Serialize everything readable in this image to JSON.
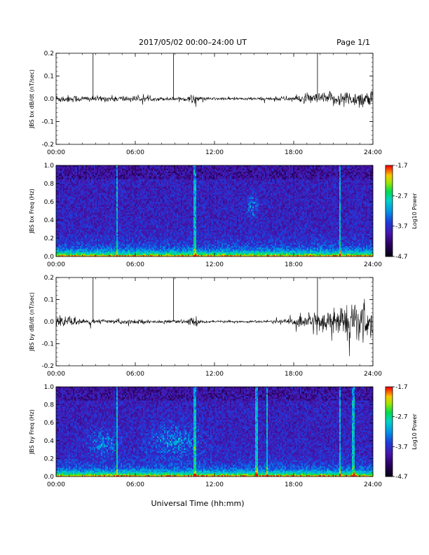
{
  "header": {
    "title": "2017/05/02  00:00–24:00 UT",
    "page": "Page 1/1"
  },
  "footer": {
    "xlabel": "Universal Time (hh:mm)"
  },
  "chart_data": [
    {
      "type": "line",
      "ylabel": "JBS bx dB/dt (nT/sec)",
      "xlim": [
        0,
        24
      ],
      "ylim": [
        -0.2,
        0.2
      ],
      "x_ticks": [
        "00:00",
        "06:00",
        "12:00",
        "18:00",
        "24:00"
      ],
      "y_ticks": [
        "-0.2",
        "-0.1",
        "0.0",
        "0.1",
        "0.2"
      ],
      "spike_hours": [
        2.8,
        8.9,
        19.8
      ],
      "amplitude_envelope": {
        "hours": [
          0,
          1,
          2,
          3,
          4,
          5,
          6,
          7,
          8,
          9,
          10,
          10.5,
          11,
          12,
          13,
          14,
          15,
          16,
          17,
          18,
          19,
          20,
          21,
          22,
          23,
          24
        ],
        "amp": [
          0.012,
          0.01,
          0.009,
          0.008,
          0.008,
          0.009,
          0.008,
          0.006,
          0.005,
          0.005,
          0.006,
          0.015,
          0.005,
          0.004,
          0.004,
          0.004,
          0.004,
          0.005,
          0.006,
          0.008,
          0.013,
          0.016,
          0.019,
          0.021,
          0.023,
          0.024
        ]
      }
    },
    {
      "type": "heatmap",
      "ylabel": "JBS bx Freq (Hz)",
      "xlim": [
        0,
        24
      ],
      "ylim": [
        0.0,
        1.0
      ],
      "x_ticks": [
        "00:00",
        "06:00",
        "12:00",
        "18:00",
        "24:00"
      ],
      "y_ticks": [
        "0.0",
        "0.2",
        "0.4",
        "0.6",
        "0.8",
        "1.0"
      ],
      "colorbar": {
        "label": "Log10 Power",
        "ticks": [
          "-1.7",
          "-2.7",
          "-3.7",
          "-4.7"
        ],
        "range": [
          -4.7,
          -1.7
        ]
      },
      "vertical_lines_hours": [
        4.6,
        10.5,
        21.5
      ],
      "features": [
        {
          "hour": 14.9,
          "freq": 0.55,
          "width_h": 0.5,
          "height_f": 0.12
        }
      ]
    },
    {
      "type": "line",
      "ylabel": "JBS by dB/dt (nT/sec)",
      "xlim": [
        0,
        24
      ],
      "ylim": [
        -0.2,
        0.2
      ],
      "x_ticks": [
        "00:00",
        "06:00",
        "12:00",
        "18:00",
        "24:00"
      ],
      "y_ticks": [
        "-0.2",
        "-0.1",
        "0.0",
        "0.1",
        "0.2"
      ],
      "spike_hours": [
        2.8,
        8.9,
        19.8
      ],
      "amplitude_envelope": {
        "hours": [
          0,
          1,
          2,
          3,
          4,
          5,
          6,
          7,
          8,
          9,
          10,
          10.5,
          11,
          12,
          13,
          14,
          15,
          16,
          17,
          18,
          19,
          20,
          21,
          22,
          23,
          24
        ],
        "amp": [
          0.014,
          0.012,
          0.009,
          0.007,
          0.006,
          0.007,
          0.006,
          0.005,
          0.004,
          0.004,
          0.005,
          0.02,
          0.004,
          0.003,
          0.003,
          0.003,
          0.003,
          0.004,
          0.006,
          0.01,
          0.02,
          0.03,
          0.04,
          0.048,
          0.052,
          0.055
        ]
      }
    },
    {
      "type": "heatmap",
      "ylabel": "JBS by Freq (Hz)",
      "xlim": [
        0,
        24
      ],
      "ylim": [
        0.0,
        1.0
      ],
      "x_ticks": [
        "00:00",
        "06:00",
        "12:00",
        "18:00",
        "24:00"
      ],
      "y_ticks": [
        "0.0",
        "0.2",
        "0.4",
        "0.6",
        "0.8",
        "1.0"
      ],
      "colorbar": {
        "label": "Log10 Power",
        "ticks": [
          "-1.7",
          "-2.7",
          "-3.7",
          "-4.7"
        ],
        "range": [
          -4.7,
          -1.7
        ]
      },
      "vertical_lines_hours": [
        4.6,
        10.5,
        15.2,
        16.0,
        21.5,
        22.5
      ],
      "features": [
        {
          "hour": 3.6,
          "freq": 0.38,
          "width_h": 1.0,
          "height_f": 0.14
        },
        {
          "hour": 9.0,
          "freq": 0.4,
          "width_h": 2.0,
          "height_f": 0.18
        }
      ]
    }
  ]
}
